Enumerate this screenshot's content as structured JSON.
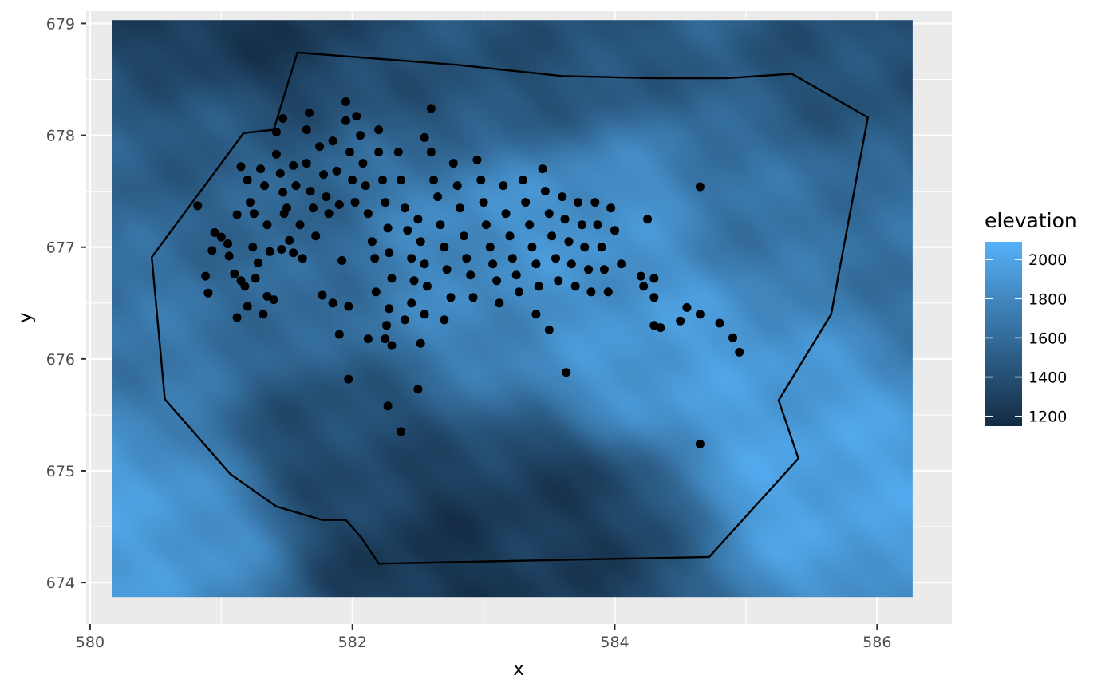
{
  "chart_data": {
    "type": "raster-scatter",
    "xlabel": "x",
    "ylabel": "y",
    "xlim": [
      579.97,
      586.57
    ],
    "ylim": [
      673.63,
      679.11
    ],
    "x_ticks": [
      580,
      582,
      584,
      586
    ],
    "y_ticks": [
      674,
      675,
      676,
      677,
      678,
      679
    ],
    "x_tick_labels": [
      "580",
      "582",
      "584",
      "586"
    ],
    "y_tick_labels": [
      "674",
      "675",
      "676",
      "677",
      "678",
      "679"
    ],
    "grid": true,
    "panel_background": "#EBEBEB",
    "raster": {
      "x_range": [
        580.17,
        586.27
      ],
      "y_range": [
        673.87,
        679.03
      ],
      "fill_variable": "elevation",
      "colorbar": {
        "title": "elevation",
        "labels": [
          "2000",
          "1800",
          "1600",
          "1400",
          "1200"
        ],
        "breaks": [
          2000,
          1800,
          1600,
          1400,
          1200
        ],
        "range": [
          1150,
          2090
        ],
        "low_color": "#132B43",
        "high_color": "#56B1F7",
        "position": "right"
      },
      "hotspots": [
        {
          "x": 583.6,
          "y": 677.3,
          "v": 1900
        },
        {
          "x": 584.6,
          "y": 676.0,
          "v": 1950
        },
        {
          "x": 585.6,
          "y": 674.9,
          "v": 2000
        },
        {
          "x": 580.2,
          "y": 674.6,
          "v": 1950
        },
        {
          "x": 580.6,
          "y": 676.2,
          "v": 1700
        },
        {
          "x": 581.3,
          "y": 676.7,
          "v": 1550
        },
        {
          "x": 582.8,
          "y": 676.4,
          "v": 1800
        },
        {
          "x": 585.5,
          "y": 677.3,
          "v": 1650
        }
      ],
      "coldspots": [
        {
          "x": 581.0,
          "y": 679.0,
          "v": 1200
        },
        {
          "x": 582.9,
          "y": 674.2,
          "v": 1200
        },
        {
          "x": 583.6,
          "y": 674.5,
          "v": 1280
        },
        {
          "x": 582.0,
          "y": 675.4,
          "v": 1350
        },
        {
          "x": 583.3,
          "y": 678.5,
          "v": 1400
        },
        {
          "x": 586.0,
          "y": 678.5,
          "v": 1400
        },
        {
          "x": 580.5,
          "y": 678.0,
          "v": 1500
        }
      ]
    },
    "boundary_polygon": [
      [
        581.58,
        678.74
      ],
      [
        582.8,
        678.63
      ],
      [
        583.6,
        678.53
      ],
      [
        584.3,
        678.51
      ],
      [
        584.85,
        678.51
      ],
      [
        585.35,
        678.55
      ],
      [
        585.93,
        678.16
      ],
      [
        585.65,
        676.4
      ],
      [
        585.25,
        675.63
      ],
      [
        585.4,
        675.11
      ],
      [
        584.72,
        674.23
      ],
      [
        582.2,
        674.17
      ],
      [
        582.2,
        674.17
      ],
      [
        582.07,
        674.4
      ],
      [
        581.95,
        674.56
      ],
      [
        581.77,
        674.56
      ],
      [
        581.42,
        674.68
      ],
      [
        581.07,
        674.97
      ],
      [
        580.57,
        675.64
      ],
      [
        580.47,
        676.91
      ],
      [
        581.17,
        678.02
      ],
      [
        581.4,
        678.05
      ]
    ],
    "points": [
      [
        580.82,
        677.37
      ],
      [
        580.88,
        676.74
      ],
      [
        580.9,
        676.59
      ],
      [
        580.93,
        676.97
      ],
      [
        580.95,
        677.13
      ],
      [
        581.0,
        677.09
      ],
      [
        581.05,
        677.03
      ],
      [
        581.06,
        676.92
      ],
      [
        581.1,
        676.76
      ],
      [
        581.12,
        677.29
      ],
      [
        581.15,
        676.7
      ],
      [
        581.12,
        676.37
      ],
      [
        581.18,
        676.65
      ],
      [
        581.2,
        676.47
      ],
      [
        581.15,
        677.72
      ],
      [
        581.2,
        677.6
      ],
      [
        581.22,
        677.4
      ],
      [
        581.25,
        677.3
      ],
      [
        581.24,
        677.0
      ],
      [
        581.28,
        676.86
      ],
      [
        581.26,
        676.72
      ],
      [
        581.3,
        677.7
      ],
      [
        581.33,
        677.55
      ],
      [
        581.35,
        677.2
      ],
      [
        581.37,
        676.96
      ],
      [
        581.32,
        676.4
      ],
      [
        581.35,
        676.56
      ],
      [
        581.4,
        676.53
      ],
      [
        581.42,
        677.83
      ],
      [
        581.45,
        677.66
      ],
      [
        581.47,
        677.49
      ],
      [
        581.5,
        677.35
      ],
      [
        581.52,
        677.06
      ],
      [
        581.55,
        676.95
      ],
      [
        581.46,
        676.98
      ],
      [
        581.48,
        677.3
      ],
      [
        581.42,
        678.03
      ],
      [
        581.47,
        678.15
      ],
      [
        581.55,
        677.73
      ],
      [
        581.57,
        677.55
      ],
      [
        581.6,
        677.2
      ],
      [
        581.62,
        676.9
      ],
      [
        581.65,
        677.75
      ],
      [
        581.68,
        677.5
      ],
      [
        581.7,
        677.35
      ],
      [
        581.72,
        677.1
      ],
      [
        581.67,
        678.2
      ],
      [
        581.65,
        678.05
      ],
      [
        581.75,
        677.9
      ],
      [
        581.78,
        677.65
      ],
      [
        581.8,
        677.45
      ],
      [
        581.82,
        677.3
      ],
      [
        581.77,
        676.57
      ],
      [
        581.85,
        676.5
      ],
      [
        581.85,
        677.95
      ],
      [
        581.88,
        677.68
      ],
      [
        581.9,
        677.38
      ],
      [
        581.92,
        676.88
      ],
      [
        581.9,
        676.22
      ],
      [
        581.95,
        678.3
      ],
      [
        581.95,
        678.13
      ],
      [
        581.98,
        677.85
      ],
      [
        582.0,
        677.6
      ],
      [
        582.02,
        677.4
      ],
      [
        581.97,
        676.47
      ],
      [
        581.97,
        675.82
      ],
      [
        582.03,
        678.17
      ],
      [
        582.06,
        678.0
      ],
      [
        582.08,
        677.75
      ],
      [
        582.1,
        677.55
      ],
      [
        582.12,
        677.3
      ],
      [
        582.15,
        677.05
      ],
      [
        582.17,
        676.9
      ],
      [
        582.18,
        676.6
      ],
      [
        582.12,
        676.18
      ],
      [
        582.2,
        678.05
      ],
      [
        582.2,
        677.85
      ],
      [
        582.23,
        677.6
      ],
      [
        582.25,
        677.4
      ],
      [
        582.27,
        677.17
      ],
      [
        582.28,
        676.95
      ],
      [
        582.3,
        676.72
      ],
      [
        582.28,
        676.45
      ],
      [
        582.26,
        676.3
      ],
      [
        582.25,
        676.18
      ],
      [
        582.3,
        676.12
      ],
      [
        582.27,
        675.58
      ],
      [
        582.35,
        677.85
      ],
      [
        582.37,
        677.6
      ],
      [
        582.4,
        677.35
      ],
      [
        582.42,
        677.15
      ],
      [
        582.45,
        676.9
      ],
      [
        582.47,
        676.7
      ],
      [
        582.45,
        676.5
      ],
      [
        582.4,
        676.35
      ],
      [
        582.37,
        675.35
      ],
      [
        582.5,
        677.25
      ],
      [
        582.52,
        677.05
      ],
      [
        582.55,
        676.85
      ],
      [
        582.57,
        676.65
      ],
      [
        582.55,
        676.4
      ],
      [
        582.52,
        676.14
      ],
      [
        582.5,
        675.73
      ],
      [
        582.55,
        677.98
      ],
      [
        582.6,
        677.85
      ],
      [
        582.62,
        677.6
      ],
      [
        582.65,
        677.45
      ],
      [
        582.67,
        677.2
      ],
      [
        582.7,
        677.0
      ],
      [
        582.72,
        676.8
      ],
      [
        582.75,
        676.55
      ],
      [
        582.7,
        676.35
      ],
      [
        582.6,
        678.24
      ],
      [
        582.77,
        677.75
      ],
      [
        582.8,
        677.55
      ],
      [
        582.82,
        677.35
      ],
      [
        582.85,
        677.1
      ],
      [
        582.87,
        676.9
      ],
      [
        582.9,
        676.75
      ],
      [
        582.92,
        676.55
      ],
      [
        582.95,
        677.78
      ],
      [
        582.98,
        677.6
      ],
      [
        583.0,
        677.4
      ],
      [
        583.02,
        677.2
      ],
      [
        583.05,
        677.0
      ],
      [
        583.07,
        676.85
      ],
      [
        583.1,
        676.7
      ],
      [
        583.12,
        676.5
      ],
      [
        583.15,
        677.55
      ],
      [
        583.17,
        677.3
      ],
      [
        583.2,
        677.1
      ],
      [
        583.22,
        676.9
      ],
      [
        583.25,
        676.75
      ],
      [
        583.27,
        676.6
      ],
      [
        583.3,
        677.6
      ],
      [
        583.32,
        677.4
      ],
      [
        583.35,
        677.2
      ],
      [
        583.37,
        677.0
      ],
      [
        583.4,
        676.85
      ],
      [
        583.42,
        676.65
      ],
      [
        583.4,
        676.4
      ],
      [
        583.45,
        677.7
      ],
      [
        583.47,
        677.5
      ],
      [
        583.5,
        677.3
      ],
      [
        583.52,
        677.1
      ],
      [
        583.55,
        676.9
      ],
      [
        583.57,
        676.7
      ],
      [
        583.5,
        676.26
      ],
      [
        583.6,
        677.45
      ],
      [
        583.62,
        677.25
      ],
      [
        583.65,
        677.05
      ],
      [
        583.67,
        676.85
      ],
      [
        583.7,
        676.65
      ],
      [
        583.63,
        675.88
      ],
      [
        583.72,
        677.4
      ],
      [
        583.75,
        677.2
      ],
      [
        583.77,
        677.0
      ],
      [
        583.8,
        676.8
      ],
      [
        583.82,
        676.6
      ],
      [
        583.85,
        677.4
      ],
      [
        583.87,
        677.2
      ],
      [
        583.9,
        677.0
      ],
      [
        583.92,
        676.8
      ],
      [
        583.95,
        676.6
      ],
      [
        583.97,
        677.35
      ],
      [
        584.0,
        677.15
      ],
      [
        584.05,
        676.85
      ],
      [
        584.2,
        676.74
      ],
      [
        584.22,
        676.65
      ],
      [
        584.25,
        677.25
      ],
      [
        584.3,
        676.72
      ],
      [
        584.3,
        676.55
      ],
      [
        584.3,
        676.3
      ],
      [
        584.35,
        676.28
      ],
      [
        584.5,
        676.34
      ],
      [
        584.55,
        676.46
      ],
      [
        584.65,
        676.4
      ],
      [
        584.65,
        677.54
      ],
      [
        584.65,
        675.24
      ],
      [
        584.8,
        676.32
      ],
      [
        584.9,
        676.19
      ],
      [
        584.95,
        676.06
      ]
    ]
  }
}
